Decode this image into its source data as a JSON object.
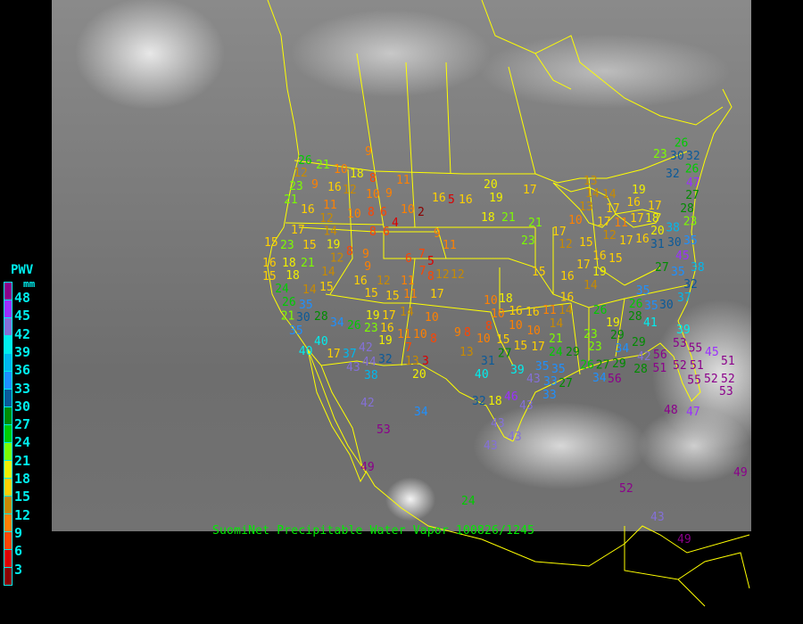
{
  "caption": "SuomiNet Precipitable Water Vapor 100826/1245",
  "legend": {
    "title": "PWV",
    "unit": "mm",
    "labels": [
      "48",
      "45",
      "42",
      "39",
      "36",
      "33",
      "30",
      "27",
      "24",
      "21",
      "18",
      "15",
      "12",
      "9",
      "6",
      "3"
    ],
    "colors": [
      "#8b008b",
      "#9b30ff",
      "#8470d8",
      "#00eeee",
      "#00b8ee",
      "#1e90ff",
      "#0a5a9a",
      "#008c00",
      "#00cc00",
      "#7cfc00",
      "#f0f000",
      "#ffd000",
      "#c88a00",
      "#ff8000",
      "#ff4500",
      "#dd0000",
      "#8b0000"
    ]
  },
  "map": {
    "outline_color": "#ffff00",
    "imagery": "infrared satellite"
  },
  "stations": [
    "9",
    "26",
    "12",
    "21",
    "10",
    "18",
    "23",
    "9",
    "16",
    "12",
    "8",
    "11",
    "10",
    "9",
    "21",
    "16",
    "11",
    "10",
    "8",
    "6",
    "10",
    "2",
    "4",
    "12",
    "14",
    "19",
    "17",
    "8",
    "6",
    "16",
    "5",
    "16",
    "20",
    "19",
    "18",
    "21",
    "9",
    "11",
    "15",
    "23",
    "15",
    "12",
    "8",
    "9",
    "9",
    "16",
    "18",
    "21",
    "15",
    "18",
    "14",
    "24",
    "26",
    "14",
    "15",
    "16",
    "15",
    "12",
    "15",
    "11",
    "11",
    "6",
    "7",
    "5",
    "7",
    "8",
    "12",
    "12",
    "17",
    "21",
    "35",
    "30",
    "28",
    "34",
    "35",
    "26",
    "23",
    "16",
    "19",
    "17",
    "14",
    "10",
    "11",
    "10",
    "8",
    "7",
    "19",
    "40",
    "40",
    "17",
    "37",
    "42",
    "44",
    "32",
    "43",
    "38",
    "13",
    "3",
    "20",
    "9",
    "8",
    "10",
    "13",
    "31",
    "40",
    "39",
    "43",
    "35",
    "35",
    "33",
    "27",
    "33",
    "32",
    "18",
    "46",
    "43",
    "43",
    "43",
    "43",
    "34",
    "42",
    "53",
    "49",
    "24",
    "10",
    "18",
    "16",
    "10",
    "10",
    "16",
    "11",
    "14",
    "14",
    "16",
    "8",
    "15",
    "10",
    "15",
    "17",
    "27",
    "21",
    "24",
    "29",
    "23",
    "23",
    "19",
    "26",
    "28",
    "29",
    "34",
    "26",
    "35",
    "41",
    "39",
    "42",
    "29",
    "27",
    "26",
    "28",
    "34",
    "56",
    "29",
    "23",
    "21",
    "17",
    "12",
    "15",
    "15",
    "16",
    "14",
    "17",
    "19",
    "16",
    "15",
    "10",
    "13",
    "14",
    "14",
    "17",
    "17",
    "12",
    "11",
    "17",
    "16",
    "17",
    "18",
    "17",
    "20",
    "31",
    "30",
    "38",
    "35",
    "45",
    "17",
    "13",
    "19",
    "16",
    "23",
    "30",
    "26",
    "32",
    "26",
    "32",
    "47",
    "27",
    "28",
    "23",
    "27",
    "35",
    "38",
    "32",
    "37",
    "35",
    "30",
    "48",
    "47",
    "52",
    "52",
    "51",
    "55",
    "53",
    "56",
    "51",
    "55",
    "45",
    "51",
    "52",
    "53",
    "52",
    "43",
    "49",
    "49"
  ]
}
